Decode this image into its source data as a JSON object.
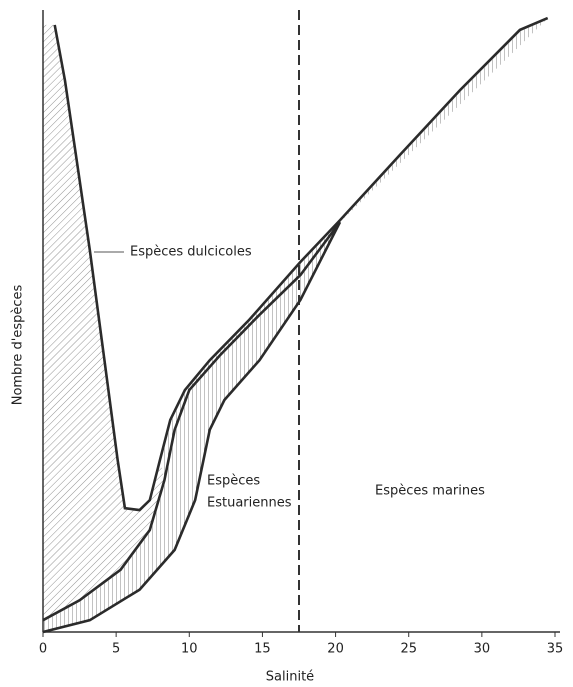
{
  "chart_data": {
    "type": "line",
    "xlabel": "Salinité",
    "ylabel": "Nombre d'espèces",
    "xlim": [
      0,
      35
    ],
    "xticks": [
      0,
      5,
      10,
      15,
      20,
      25,
      30,
      35
    ],
    "ylim": [
      0,
      100
    ],
    "vline": 17.5,
    "annotations": [
      "Espèces dulcicoles",
      "Espèces",
      "Estuariennes",
      "Espèces marines"
    ],
    "series": [
      {
        "color": "#2b2b2b",
        "x": [
          0.8,
          1.5,
          2.2,
          3.2,
          4.2,
          5.1,
          5.6,
          6.6,
          7.3,
          8.0,
          8.7,
          9.7,
          11.4,
          14.1,
          17.6,
          20.3,
          24.4,
          28.5,
          32.6,
          34.5
        ],
        "values": [
          97.6,
          88.7,
          77.5,
          61.4,
          43.7,
          27.7,
          19.9,
          19.6,
          21.2,
          27.7,
          34.1,
          38.9,
          43.7,
          50.2,
          59.5,
          66.2,
          76.7,
          87.1,
          96.8,
          98.7
        ]
      },
      {
        "color": "#2b2b2b",
        "x": [
          0,
          2.5,
          5.3,
          7.3,
          8.3,
          9.0,
          10.0,
          12.1,
          14.8,
          17.6,
          20.3
        ],
        "values": [
          1.9,
          5.1,
          10,
          16.4,
          24.4,
          32.5,
          38.9,
          44.5,
          51,
          57.4,
          65.9
        ]
      },
      {
        "color": "#2b2b2b",
        "x": [
          0,
          3.2,
          6.6,
          9.0,
          10.4,
          11.4,
          12.4,
          14.8,
          17.6,
          20.3
        ],
        "values": [
          0,
          1.9,
          6.8,
          13.2,
          21.2,
          32.5,
          37.3,
          43.7,
          53.4,
          65.9
        ]
      }
    ]
  }
}
